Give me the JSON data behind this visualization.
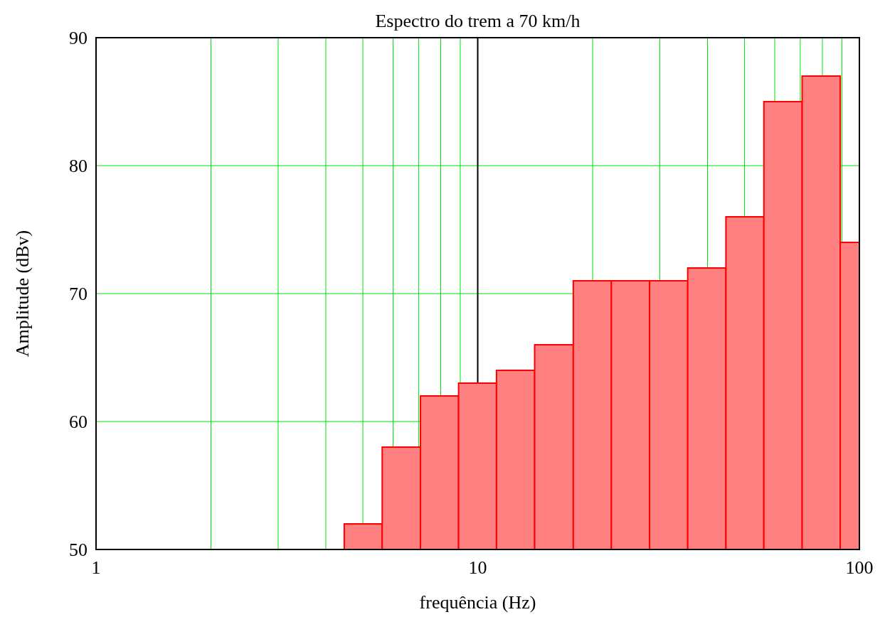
{
  "chart_data": {
    "type": "histogram",
    "title": "Espectro do trem a 70 km/h",
    "xlabel": "frequência (Hz)",
    "ylabel": "Amplitude (dBv)",
    "bins": [
      4.47,
      5.62,
      7.08,
      8.91,
      11.2,
      14.1,
      17.8,
      22.4,
      28.2,
      35.5,
      44.7,
      56.2,
      70.8,
      89.1,
      100
    ],
    "values": [
      52,
      58,
      62,
      63,
      64,
      66,
      71,
      71,
      71,
      72,
      76,
      85,
      87,
      74
    ],
    "color": "#ff8080",
    "log": "x",
    "xlim": [
      1,
      100
    ],
    "xticks": [
      1,
      {
        "value": 2,
        "label": null
      },
      {
        "value": 3,
        "label": null
      },
      {
        "value": 4,
        "label": null
      },
      {
        "value": 5,
        "label": null
      },
      {
        "value": 6,
        "label": null
      },
      {
        "value": 7,
        "label": null
      },
      {
        "value": 8,
        "label": null
      },
      {
        "value": 9,
        "label": null
      },
      10,
      {
        "value": 20,
        "label": null
      },
      {
        "value": 30,
        "label": null
      },
      {
        "value": 40,
        "label": null
      },
      {
        "value": 50,
        "label": null
      },
      {
        "value": 60,
        "label": null
      },
      {
        "value": 70,
        "label": null
      },
      {
        "value": 80,
        "label": null
      },
      {
        "value": 90,
        "label": null
      },
      100
    ],
    "ylim": [
      50,
      90
    ],
    "yticks": [
      50,
      60,
      70,
      80,
      90
    ],
    "grid": true,
    "ref_lines": [
      {
        "axis": "x",
        "value": 10,
        "color": "#000000"
      }
    ]
  }
}
